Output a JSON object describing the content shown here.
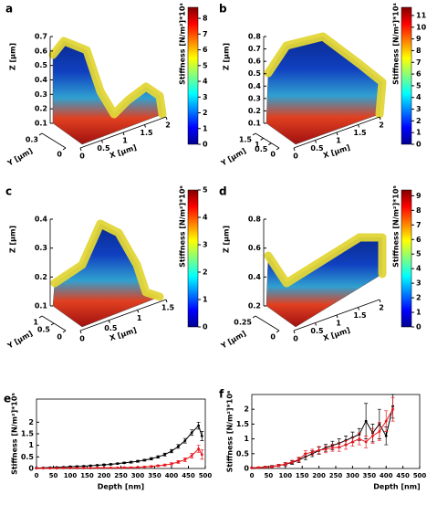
{
  "panels": [
    {
      "label": "a",
      "zlabel": "Z [µm]",
      "ylabel": "Y [µm]",
      "xlabel": "X [µm]",
      "zlim": [
        0.1,
        0.7
      ],
      "zticks": [
        0.1,
        0.2,
        0.3,
        0.4,
        0.5,
        0.6,
        0.7
      ],
      "ylim": [
        0,
        0.3
      ],
      "yticks": [
        0,
        0.3
      ],
      "xlim": [
        0,
        2
      ],
      "xticks": [
        0,
        0.5,
        1,
        1.5,
        2
      ],
      "colorbar": {
        "title": "Stiffness [N/m²]*10⁴",
        "lim": [
          0,
          8.7
        ],
        "ticks": [
          0,
          1,
          2,
          3,
          4,
          5,
          6,
          7,
          8
        ]
      }
    },
    {
      "label": "b",
      "zlabel": "Z [µm]",
      "ylabel": "Y [µm]",
      "xlabel": "X [µm]",
      "zlim": [
        0.1,
        0.8
      ],
      "zticks": [
        0.1,
        0.2,
        0.3,
        0.4,
        0.5,
        0.6,
        0.7,
        0.8
      ],
      "ylim": [
        0,
        1.5
      ],
      "yticks": [
        0,
        0.5,
        1,
        1.5
      ],
      "xlim": [
        0,
        2
      ],
      "xticks": [
        0,
        0.5,
        1,
        1.5,
        2
      ],
      "colorbar": {
        "title": "Stiffness [N/m²]*10⁴",
        "lim": [
          0,
          11.7
        ],
        "ticks": [
          0,
          1,
          2,
          3,
          4,
          5,
          6,
          7,
          8,
          9,
          10,
          11
        ]
      }
    },
    {
      "label": "c",
      "zlabel": "Z [µm]",
      "ylabel": "Y [µm]",
      "xlabel": "X [µm]",
      "zlim": [
        0.1,
        0.4
      ],
      "zticks": [
        0.1,
        0.2,
        0.3,
        0.4
      ],
      "ylim": [
        0,
        1
      ],
      "yticks": [
        0,
        0.5,
        1
      ],
      "xlim": [
        0,
        1.5
      ],
      "xticks": [
        0,
        0.5,
        1,
        1.5
      ],
      "colorbar": {
        "title": "Stiffness [N/m²]*10⁶",
        "lim": [
          0,
          5
        ],
        "ticks": [
          0,
          1,
          2,
          3,
          4,
          5
        ]
      }
    },
    {
      "label": "d",
      "zlabel": "Z [µm]",
      "ylabel": "Y [µm]",
      "xlabel": "X [µm]",
      "zlim": [
        0.2,
        0.8
      ],
      "zticks": [
        0.2,
        0.4,
        0.6,
        0.8
      ],
      "ylim": [
        0,
        0.25
      ],
      "yticks": [
        0,
        0.25
      ],
      "xlim": [
        0,
        2
      ],
      "xticks": [
        0,
        0.5,
        1,
        1.5,
        2
      ],
      "colorbar": {
        "title": "Stiffness [N/m²]*10⁵",
        "lim": [
          0,
          9.4
        ],
        "ticks": [
          0,
          1,
          2,
          3,
          4,
          5,
          6,
          7,
          8,
          9
        ]
      }
    }
  ],
  "chart_data": [
    {
      "type": "line",
      "label": "e",
      "xlabel": "Depth [nm]",
      "ylabel": "Stiffness [N/m²]*10⁵",
      "xlim": [
        0,
        500
      ],
      "xticks": [
        0,
        50,
        100,
        150,
        200,
        250,
        300,
        350,
        400,
        450,
        500
      ],
      "ylim": [
        0,
        3
      ],
      "yticks": [
        0,
        0.5,
        1,
        1.5,
        2
      ],
      "x": [
        0,
        20,
        40,
        60,
        80,
        100,
        120,
        140,
        160,
        180,
        200,
        220,
        240,
        260,
        280,
        300,
        320,
        340,
        360,
        380,
        400,
        420,
        440,
        460,
        480,
        490
      ],
      "series": [
        {
          "color": "#000000",
          "values": [
            0.02,
            0.03,
            0.04,
            0.05,
            0.06,
            0.08,
            0.09,
            0.1,
            0.12,
            0.14,
            0.16,
            0.18,
            0.21,
            0.24,
            0.27,
            0.31,
            0.36,
            0.42,
            0.5,
            0.6,
            0.75,
            0.95,
            1.2,
            1.55,
            1.85,
            1.4
          ],
          "errors": [
            0.01,
            0.01,
            0.01,
            0.01,
            0.01,
            0.02,
            0.02,
            0.02,
            0.02,
            0.02,
            0.03,
            0.03,
            0.03,
            0.03,
            0.04,
            0.04,
            0.04,
            0.05,
            0.05,
            0.06,
            0.07,
            0.08,
            0.1,
            0.12,
            0.15,
            0.2
          ]
        },
        {
          "color": "#e8141c",
          "values": [
            0.01,
            0.01,
            0.01,
            0.01,
            0.02,
            0.02,
            0.02,
            0.02,
            0.02,
            0.03,
            0.03,
            0.03,
            0.03,
            0.04,
            0.04,
            0.05,
            0.07,
            0.09,
            0.12,
            0.15,
            0.2,
            0.28,
            0.38,
            0.55,
            0.85,
            0.6
          ],
          "errors": [
            0.01,
            0.01,
            0.01,
            0.01,
            0.01,
            0.01,
            0.01,
            0.01,
            0.01,
            0.01,
            0.01,
            0.01,
            0.01,
            0.02,
            0.02,
            0.02,
            0.02,
            0.03,
            0.03,
            0.04,
            0.05,
            0.06,
            0.08,
            0.1,
            0.15,
            0.2
          ]
        }
      ]
    },
    {
      "type": "line",
      "label": "f",
      "xlabel": "Depth [nm]",
      "ylabel": "Stiffness [N/m²]*10⁶",
      "xlim": [
        0,
        500
      ],
      "xticks": [
        0,
        50,
        100,
        150,
        200,
        250,
        300,
        350,
        400,
        450,
        500
      ],
      "ylim": [
        0,
        2.5
      ],
      "yticks": [
        0,
        0.5,
        1,
        1.5,
        2
      ],
      "x": [
        0,
        20,
        40,
        60,
        80,
        100,
        120,
        140,
        160,
        180,
        200,
        220,
        240,
        260,
        280,
        300,
        320,
        340,
        360,
        380,
        400,
        420
      ],
      "series": [
        {
          "color": "#000000",
          "values": [
            0.02,
            0.03,
            0.05,
            0.07,
            0.1,
            0.14,
            0.2,
            0.28,
            0.4,
            0.5,
            0.6,
            0.7,
            0.78,
            0.85,
            0.95,
            1.05,
            1.15,
            1.6,
            1.2,
            1.5,
            1.1,
            2.1
          ],
          "errors": [
            0.01,
            0.02,
            0.02,
            0.03,
            0.04,
            0.05,
            0.06,
            0.08,
            0.1,
            0.1,
            0.12,
            0.12,
            0.14,
            0.15,
            0.15,
            0.18,
            0.2,
            0.6,
            0.3,
            0.5,
            0.3,
            0.4
          ]
        },
        {
          "color": "#e8141c",
          "values": [
            0.02,
            0.03,
            0.04,
            0.06,
            0.1,
            0.15,
            0.22,
            0.3,
            0.5,
            0.55,
            0.62,
            0.65,
            0.7,
            0.72,
            0.8,
            0.9,
            1.0,
            0.9,
            1.1,
            1.25,
            1.6,
            2.0
          ],
          "errors": [
            0.01,
            0.02,
            0.02,
            0.03,
            0.04,
            0.05,
            0.06,
            0.08,
            0.1,
            0.1,
            0.12,
            0.12,
            0.12,
            0.14,
            0.15,
            0.15,
            0.2,
            0.2,
            0.25,
            0.3,
            0.35,
            0.4
          ]
        }
      ]
    }
  ]
}
